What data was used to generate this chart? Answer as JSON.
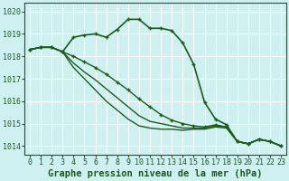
{
  "title": "Graphe pression niveau de la mer (hPa)",
  "background_color": "#cff0f0",
  "grid_color": "#ffffff",
  "line_color": "#1a5c1a",
  "marker_color": "#1a5c1a",
  "ylabel_ticks": [
    1014,
    1015,
    1016,
    1017,
    1018,
    1019,
    1020
  ],
  "xlim": [
    -0.5,
    23.5
  ],
  "ylim": [
    1013.6,
    1020.4
  ],
  "xlabel_ticks": [
    0,
    1,
    2,
    3,
    4,
    5,
    6,
    7,
    8,
    9,
    10,
    11,
    12,
    13,
    14,
    15,
    16,
    17,
    18,
    19,
    20,
    21,
    22,
    23
  ],
  "series": [
    {
      "y": [
        1018.3,
        1018.4,
        1018.4,
        1018.2,
        1018.85,
        1018.95,
        1019.0,
        1018.85,
        1019.2,
        1019.65,
        1019.65,
        1019.25,
        1019.25,
        1019.15,
        1018.6,
        1017.65,
        1015.95,
        1015.2,
        1014.95,
        1014.2,
        1014.1,
        1014.3,
        1014.2,
        1014.0
      ],
      "marker": true,
      "lw": 1.2,
      "zorder": 4
    },
    {
      "y": [
        1018.3,
        1018.4,
        1018.4,
        1018.2,
        1018.0,
        1017.75,
        1017.5,
        1017.2,
        1016.85,
        1016.5,
        1016.1,
        1015.75,
        1015.4,
        1015.15,
        1015.0,
        1014.9,
        1014.85,
        1014.95,
        1014.85,
        1014.2,
        1014.1,
        1014.3,
        1014.2,
        1014.0
      ],
      "marker": true,
      "lw": 1.0,
      "zorder": 3
    },
    {
      "y": [
        1018.3,
        1018.4,
        1018.4,
        1018.2,
        1017.7,
        1017.3,
        1016.95,
        1016.55,
        1016.15,
        1015.75,
        1015.35,
        1015.1,
        1015.0,
        1014.9,
        1014.8,
        1014.8,
        1014.8,
        1014.9,
        1014.85,
        1014.2,
        1014.1,
        1014.3,
        1014.2,
        1014.0
      ],
      "marker": false,
      "lw": 1.0,
      "zorder": 2
    },
    {
      "y": [
        1018.3,
        1018.4,
        1018.4,
        1018.2,
        1017.5,
        1017.0,
        1016.5,
        1016.0,
        1015.6,
        1015.2,
        1014.9,
        1014.8,
        1014.75,
        1014.75,
        1014.7,
        1014.75,
        1014.75,
        1014.85,
        1014.8,
        1014.2,
        1014.1,
        1014.3,
        1014.2,
        1014.0
      ],
      "marker": false,
      "lw": 1.0,
      "zorder": 2
    }
  ],
  "title_fontsize": 7.5,
  "tick_fontsize": 6.0,
  "marker_size": 3.5,
  "marker_ew": 1.0
}
